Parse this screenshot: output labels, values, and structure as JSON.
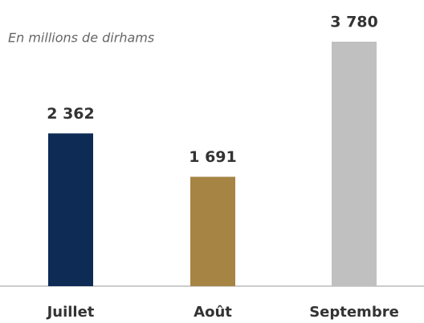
{
  "chart_data": {
    "type": "bar",
    "subtitle": "En millions de dirhams",
    "categories": [
      "Juillet",
      "Août",
      "Septembre"
    ],
    "values": [
      2362,
      1691,
      3780
    ],
    "value_labels": [
      "2 362",
      "1 691",
      "3 780"
    ],
    "colors": [
      "#0d2b55",
      "#a68444",
      "#c0c0c0"
    ]
  }
}
